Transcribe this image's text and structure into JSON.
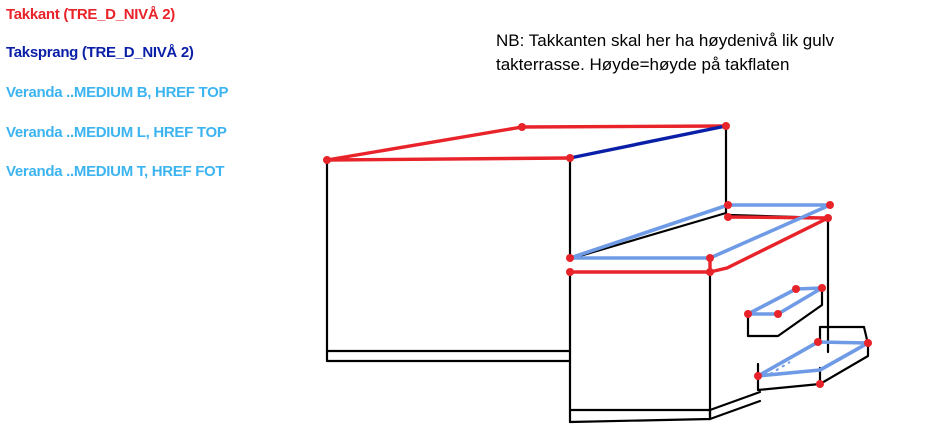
{
  "legend": [
    {
      "label": "Takkant (TRE_D_NIVÅ 2)",
      "color": "#e8232a"
    },
    {
      "label": "Taksprang (TRE_D_NIVÅ 2)",
      "color": "#0a1fa8"
    },
    {
      "label": "Veranda ..MEDIUM B, HREF TOP",
      "color": "#3cb4f0"
    },
    {
      "label": "Veranda ..MEDIUM L, HREF TOP",
      "color": "#3cb4f0"
    },
    {
      "label": "Veranda ..MEDIUM T, HREF FOT",
      "color": "#3cb4f0"
    }
  ],
  "note": {
    "line1": "NB: Takkanten skal her ha høydenivå lik gulv",
    "line2": "takterrasse. Høyde=høyde på takflaten"
  },
  "colors": {
    "outline": "#000000",
    "takkant": "#e8232a",
    "taksprang": "#0a1fa8",
    "veranda": "#6f9be6",
    "vertex": "#e8232a"
  }
}
